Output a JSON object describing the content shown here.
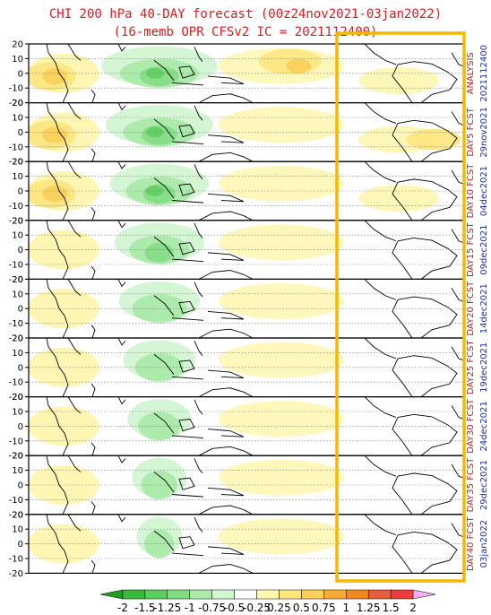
{
  "title": {
    "line1": "CHI 200 hPa 40-DAY forecast (00z24nov2021-03jan2022)",
    "line2": "(16-memb OPR CFSv2 IC = 2021112400)"
  },
  "colors": {
    "title": "#d42020",
    "label_red": "#c02020",
    "label_blue": "#2030a0",
    "highlight_box": "#f5b800"
  },
  "panels": [
    {
      "label": "ANALYSIS",
      "date": "2021112400"
    },
    {
      "label": "DAY5 FCST",
      "date": "29nov2021"
    },
    {
      "label": "DAY10 FCST",
      "date": "04dec2021"
    },
    {
      "label": "DAY15 FCST",
      "date": "09dec2021"
    },
    {
      "label": "DAY20 FCST",
      "date": "14dec2021"
    },
    {
      "label": "DAY25 FCST",
      "date": "19dec2021"
    },
    {
      "label": "DAY30 FCST",
      "date": "24dec2021"
    },
    {
      "label": "DAY35 FCST",
      "date": "29dec2021"
    },
    {
      "label": "DAY40 FCST",
      "date": "03jan2022"
    }
  ],
  "colorbar": {
    "labels": [
      "-2",
      "-1.5",
      "-1.25",
      "-1",
      "-0.75",
      "-0.5",
      "-0.25",
      "0.25",
      "0.5",
      "0.75",
      "1",
      "1.25",
      "1.5",
      "2"
    ],
    "colors": [
      "#1fa01f",
      "#3cb83c",
      "#5ccd5c",
      "#82dc82",
      "#a9eaa9",
      "#d2f5d2",
      "#ffffff",
      "#fff6b0",
      "#fde580",
      "#fbcf58",
      "#f8ad2e",
      "#f08a1e",
      "#e85c3c",
      "#f03c3c",
      "#f8b0f8"
    ]
  },
  "chart_data": {
    "type": "heatmap",
    "variable": "CHI 200 hPa",
    "panels": [
      "ANALYSIS 2021112400",
      "DAY5 FCST 29nov2021",
      "DAY10 FCST 04dec2021",
      "DAY15 FCST 09dec2021",
      "DAY20 FCST 14dec2021",
      "DAY25 FCST 19dec2021",
      "DAY30 FCST 24dec2021",
      "DAY35 FCST 29dec2021",
      "DAY40 FCST 03jan2022"
    ],
    "yticks": [
      20,
      10,
      0,
      -10,
      -20
    ],
    "ylim": [
      -20,
      20
    ],
    "levels": [
      -2,
      -1.5,
      -1.25,
      -1,
      -0.75,
      -0.5,
      -0.25,
      0.25,
      0.5,
      0.75,
      1,
      1.25,
      1.5,
      2
    ],
    "grid": true
  }
}
